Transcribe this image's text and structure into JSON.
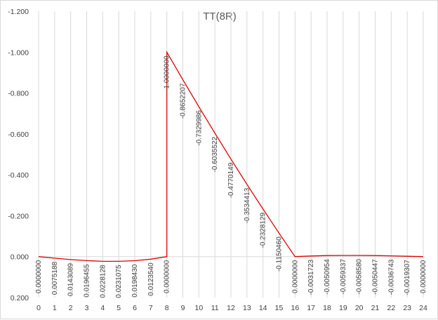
{
  "chart_data": {
    "type": "line",
    "title": "TT(8R)",
    "xlabel": "",
    "ylabel": "",
    "x": [
      0,
      1,
      2,
      3,
      4,
      5,
      6,
      7,
      8,
      8,
      9,
      10,
      11,
      12,
      13,
      14,
      15,
      16,
      17,
      18,
      19,
      20,
      21,
      22,
      23,
      24
    ],
    "series": [
      {
        "color": "#e00000",
        "values": [
          0.0,
          0.0075188,
          0.0143089,
          0.0196455,
          0.0228128,
          0.0231075,
          0.019843,
          0.012354,
          0.0,
          -1.0,
          -0.8652207,
          -0.7329986,
          -0.6035522,
          -0.4770149,
          -0.3534413,
          -0.2328129,
          -0.115046,
          0.0,
          -0.0031723,
          -0.0050954,
          -0.0059337,
          -0.005858,
          -0.0050447,
          -0.0036743,
          -0.0019307,
          0.0
        ]
      }
    ],
    "data_labels": [
      "0.0000000",
      "0.0075188",
      "0.0143089",
      "0.0196455",
      "0.0228128",
      "0.0231075",
      "0.0198430",
      "0.0123540",
      "0.0000000",
      "-1.0000000",
      "-0.8652207",
      "-0.7329986",
      "-0.6035522",
      "-0.4770149",
      "-0.3534413",
      "-0.2328129",
      "-0.1150460",
      "0.0000000",
      "-0.0031723",
      "-0.0050954",
      "-0.0059337",
      "-0.0058580",
      "-0.0050447",
      "-0.0036743",
      "-0.0019307",
      "0.0000000"
    ],
    "y_ticks": [
      -1.2,
      -1.0,
      -0.8,
      -0.6,
      -0.4,
      -0.2,
      0.0,
      0.2
    ],
    "y_tick_labels": [
      "-1.200",
      "-1.000",
      "-0.800",
      "-0.600",
      "-0.400",
      "-0.200",
      "0.000",
      "0.200"
    ],
    "x_ticks": [
      0,
      1,
      2,
      3,
      4,
      5,
      6,
      7,
      8,
      9,
      10,
      11,
      12,
      13,
      14,
      15,
      16,
      17,
      18,
      19,
      20,
      21,
      22,
      23,
      24
    ],
    "x_tick_labels": [
      "0",
      "1",
      "2",
      "3",
      "4",
      "5",
      "6",
      "7",
      "8",
      "9",
      "10",
      "11",
      "12",
      "13",
      "14",
      "15",
      "16",
      "17",
      "18",
      "19",
      "20",
      "21",
      "22",
      "23",
      "24"
    ],
    "ylim": [
      -1.2,
      0.2
    ],
    "xlim": [
      0,
      24
    ],
    "y_reversed": true,
    "grid": "vertical",
    "legend": "none",
    "colors": {
      "line": "#e00000",
      "grid": "#d9d9d9",
      "text": "#404040",
      "title": "#595959"
    }
  }
}
